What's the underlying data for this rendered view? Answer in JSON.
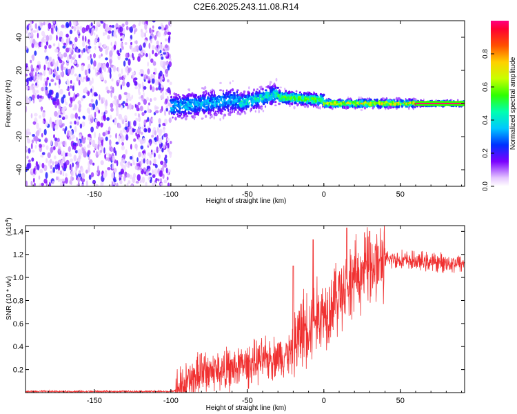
{
  "title": "C2E6.2025.243.11.08.R14",
  "colors": {
    "snr_line": "#f03030",
    "grid_axis": "#000000",
    "background": "#ffffff"
  },
  "chart_data": [
    {
      "type": "heatmap",
      "name": "spectrogram",
      "xlabel": "Height of straight line (km)",
      "ylabel": "Frequency (Hz)",
      "xlim": [
        -195,
        92
      ],
      "ylim": [
        -50,
        50
      ],
      "xticks": [
        -150,
        -100,
        -50,
        0,
        50
      ],
      "yticks": [
        -40,
        -20,
        0,
        20,
        40
      ],
      "colorbar": {
        "label": "Normalized spectral amplitude",
        "range": [
          0,
          1
        ],
        "ticks": [
          "0.0",
          "0.2",
          "0.4",
          "0.6",
          "0.8"
        ]
      },
      "regions": [
        {
          "x_range": [
            -195,
            -100
          ],
          "freq_spread_hz": 50,
          "amplitude": 0.1,
          "description_level": "noise"
        },
        {
          "x_range": [
            -100,
            -55
          ],
          "center_hz": [
            -2,
            2
          ],
          "half_width_hz": 8,
          "amplitude": 0.35
        },
        {
          "x_range": [
            -55,
            -30
          ],
          "center_hz": [
            0,
            6
          ],
          "half_width_hz": 6,
          "amplitude": 0.45
        },
        {
          "x_range": [
            -30,
            0
          ],
          "center_hz": [
            4,
            2
          ],
          "half_width_hz": 4,
          "amplitude": 0.6
        },
        {
          "x_range": [
            0,
            60
          ],
          "center_hz": [
            0,
            0
          ],
          "half_width_hz": 2.5,
          "amplitude": 0.75
        },
        {
          "x_range": [
            60,
            92
          ],
          "center_hz": [
            0,
            0
          ],
          "half_width_hz": 1.5,
          "amplitude": 1.0
        }
      ]
    },
    {
      "type": "line",
      "name": "snr",
      "xlabel": "Height of straight line (km)",
      "ylabel": "SNR (10 * v/v)",
      "y_multiplier_label": "(x10",
      "y_multiplier_exp": "4",
      "y_multiplier_close": ")",
      "xlim": [
        -195,
        92
      ],
      "ylim": [
        0,
        1.45
      ],
      "xticks": [
        -150,
        -100,
        -50,
        0,
        50
      ],
      "yticks": [
        "0.2",
        "0.4",
        "0.6",
        "0.8",
        "1.0",
        "1.2",
        "1.4"
      ],
      "ytick_values": [
        0.2,
        0.4,
        0.6,
        0.8,
        1.0,
        1.2,
        1.4
      ],
      "trend": {
        "x": [
          -195,
          -100,
          -95,
          -85,
          -80,
          -60,
          -40,
          -20,
          -15,
          0,
          10,
          20,
          30,
          45,
          60,
          92
        ],
        "y": [
          0.01,
          0.01,
          0.03,
          0.12,
          0.18,
          0.2,
          0.28,
          0.35,
          0.55,
          0.7,
          0.85,
          1.0,
          1.1,
          1.16,
          1.14,
          1.12
        ]
      },
      "peaks": [
        {
          "x": -80,
          "y": 0.34
        },
        {
          "x": -55,
          "y": 0.32
        },
        {
          "x": -20,
          "y": 1.1
        },
        {
          "x": -7,
          "y": 1.33
        },
        {
          "x": 15,
          "y": 1.43
        },
        {
          "x": 30,
          "y": 1.4
        }
      ]
    }
  ]
}
